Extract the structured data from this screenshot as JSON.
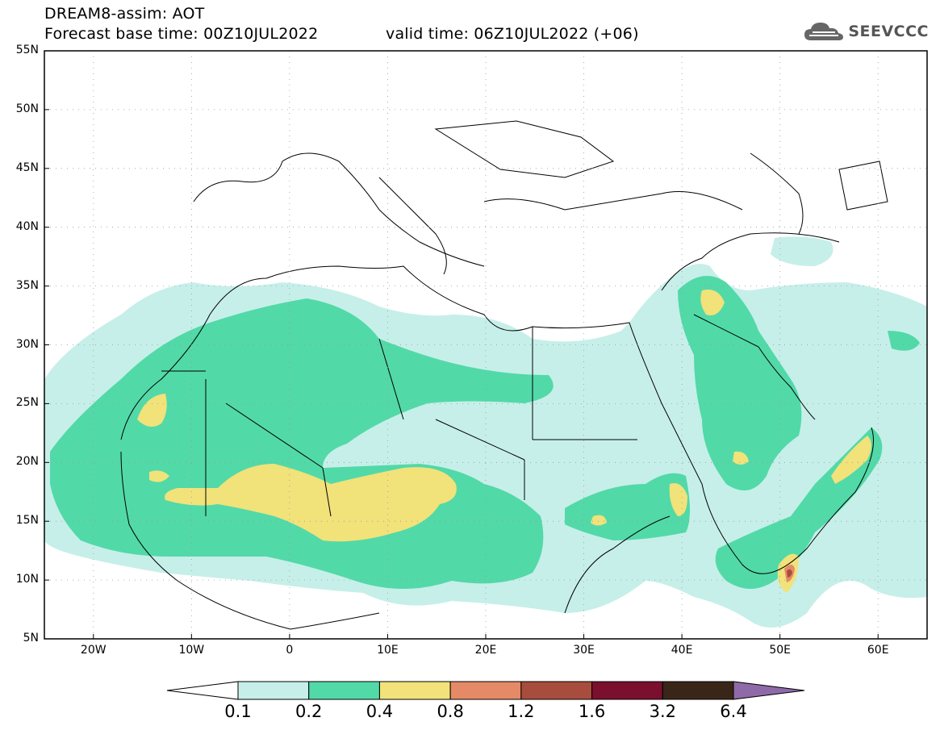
{
  "header": {
    "title_line1": "DREAM8-assim: AOT",
    "title_line2_left": "Forecast base time: 00Z10JUL2022",
    "title_line2_right": "valid time: 06Z10JUL2022 (+06)",
    "logo_text": "SEEVCCC"
  },
  "map": {
    "lon_range": [
      -25,
      65
    ],
    "lat_range": [
      5,
      55
    ],
    "lat_ticks": [
      "55N",
      "50N",
      "45N",
      "40N",
      "35N",
      "30N",
      "25N",
      "20N",
      "15N",
      "10N",
      "5N"
    ],
    "lon_ticks": [
      "20W",
      "10W",
      "0",
      "10E",
      "20E",
      "30E",
      "40E",
      "50E",
      "60E"
    ],
    "grid": true
  },
  "colorbar": {
    "levels": [
      "0.1",
      "0.2",
      "0.4",
      "0.8",
      "1.2",
      "1.6",
      "3.2",
      "6.4"
    ],
    "colors": [
      "#c6efe9",
      "#52d9a8",
      "#f1e27a",
      "#e58a66",
      "#a84d3e",
      "#7a0f2e",
      "#3a2618",
      "#8f6aa8"
    ],
    "extend": "both"
  }
}
